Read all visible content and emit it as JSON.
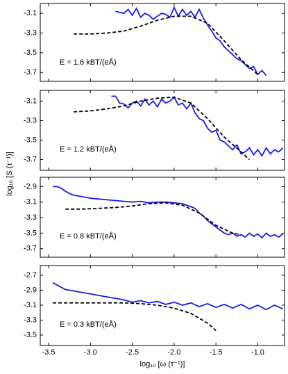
{
  "chart_data": [
    {
      "type": "line",
      "annotation": "E = 1.6 kBT/(eÅ)",
      "xlim": [
        -3.6,
        -0.68
      ],
      "xticks": [
        -3.5,
        {
          "value": -3,
          "label": "-3.0"
        },
        -2.5,
        {
          "value": -2,
          "label": "-2.0"
        },
        -1.5,
        {
          "value": -1,
          "label": "-1.0"
        }
      ],
      "ylim": [
        -3.79,
        -3.0
      ],
      "yticks": [
        -3.1,
        -3.3,
        -3.5,
        -3.7
      ],
      "series": [
        {
          "color": "#1a1aeb",
          "dash": false,
          "x": [
            -2.7,
            -2.65,
            -2.6,
            -2.55,
            -2.5,
            -2.45,
            -2.4,
            -2.35,
            -2.3,
            -2.25,
            -2.2,
            -2.15,
            -2.1,
            -2.05,
            -2.0,
            -1.95,
            -1.9,
            -1.85,
            -1.8,
            -1.75,
            -1.7,
            -1.65,
            -1.6,
            -1.55,
            -1.5,
            -1.45,
            -1.4,
            -1.35,
            -1.3,
            -1.25,
            -1.2,
            -1.15,
            -1.1,
            -1.05,
            -1.0,
            -0.95,
            -0.9
          ],
          "values": [
            -3.08,
            -3.09,
            -3.1,
            -3.06,
            -3.12,
            -3.05,
            -3.14,
            -3.1,
            -3.12,
            -3.16,
            -3.13,
            -3.1,
            -3.11,
            -3.14,
            -3.04,
            -3.13,
            -3.06,
            -3.12,
            -3.08,
            -3.14,
            -3.06,
            -3.15,
            -3.22,
            -3.28,
            -3.35,
            -3.38,
            -3.44,
            -3.48,
            -3.52,
            -3.56,
            -3.58,
            -3.62,
            -3.66,
            -3.64,
            -3.72,
            -3.68,
            -3.73
          ]
        },
        {
          "color": "#000000",
          "dash": true,
          "x": [
            -3.2,
            -3.0,
            -2.8,
            -2.6,
            -2.4,
            -2.2,
            -2.0,
            -1.8,
            -1.6,
            -1.4,
            -1.2,
            -1.0
          ],
          "values": [
            -3.31,
            -3.31,
            -3.3,
            -3.28,
            -3.23,
            -3.17,
            -3.13,
            -3.13,
            -3.2,
            -3.38,
            -3.57,
            -3.72
          ]
        }
      ]
    },
    {
      "type": "line",
      "annotation": "E = 1.2 kBT/(eÅ)",
      "ylabel": "log₁₀ [S (τ⁻¹)]",
      "xlim": [
        -3.6,
        -0.68
      ],
      "xticks": [
        -3.5,
        {
          "value": -3,
          "label": "-3.0"
        },
        -2.5,
        {
          "value": -2,
          "label": "-2.0"
        },
        -1.5,
        {
          "value": -1,
          "label": "-1.0"
        }
      ],
      "ylim": [
        -3.81,
        -2.99
      ],
      "yticks": [
        -3.1,
        -3.3,
        -3.5,
        -3.7
      ],
      "series": [
        {
          "color": "#1a1aeb",
          "dash": false,
          "x": [
            -2.75,
            -2.7,
            -2.65,
            -2.6,
            -2.55,
            -2.5,
            -2.45,
            -2.4,
            -2.35,
            -2.3,
            -2.25,
            -2.2,
            -2.15,
            -2.1,
            -2.05,
            -2.0,
            -1.95,
            -1.9,
            -1.85,
            -1.8,
            -1.75,
            -1.7,
            -1.65,
            -1.6,
            -1.55,
            -1.5,
            -1.45,
            -1.4,
            -1.35,
            -1.3,
            -1.25,
            -1.2,
            -1.15,
            -1.1,
            -1.05,
            -1.0,
            -0.95,
            -0.9,
            -0.85,
            -0.8,
            -0.75,
            -0.7
          ],
          "values": [
            -3.05,
            -3.05,
            -3.12,
            -3.13,
            -3.17,
            -3.12,
            -3.1,
            -3.15,
            -3.08,
            -3.14,
            -3.1,
            -3.16,
            -3.08,
            -3.12,
            -3.1,
            -3.06,
            -3.14,
            -3.12,
            -3.18,
            -3.12,
            -3.22,
            -3.28,
            -3.3,
            -3.38,
            -3.42,
            -3.4,
            -3.5,
            -3.52,
            -3.56,
            -3.6,
            -3.55,
            -3.64,
            -3.62,
            -3.58,
            -3.65,
            -3.6,
            -3.66,
            -3.58,
            -3.64,
            -3.6,
            -3.62,
            -3.58
          ]
        },
        {
          "color": "#000000",
          "dash": true,
          "x": [
            -3.2,
            -3.0,
            -2.8,
            -2.6,
            -2.4,
            -2.2,
            -2.0,
            -1.8,
            -1.6,
            -1.4,
            -1.2,
            -1.1
          ],
          "values": [
            -3.21,
            -3.2,
            -3.18,
            -3.15,
            -3.1,
            -3.07,
            -3.06,
            -3.12,
            -3.28,
            -3.47,
            -3.62,
            -3.7
          ]
        }
      ]
    },
    {
      "type": "line",
      "annotation": "E = 0.8 kBT/(eÅ)",
      "xlim": [
        -3.6,
        -0.68
      ],
      "xticks": [
        -3.5,
        {
          "value": -3,
          "label": "-3.0"
        },
        -2.5,
        {
          "value": -2,
          "label": "-2.0"
        },
        -1.5,
        {
          "value": -1,
          "label": "-1.0"
        }
      ],
      "ylim": [
        -3.81,
        -2.78
      ],
      "yticks": [
        -2.9,
        -3.1,
        -3.3,
        -3.5,
        -3.7
      ],
      "series": [
        {
          "color": "#1a1aeb",
          "dash": false,
          "x": [
            -3.45,
            -3.4,
            -3.35,
            -3.3,
            -3.25,
            -3.2,
            -3.15,
            -3.1,
            -3.05,
            -3.0,
            -2.9,
            -2.8,
            -2.7,
            -2.6,
            -2.5,
            -2.4,
            -2.3,
            -2.2,
            -2.1,
            -2.0,
            -1.9,
            -1.8,
            -1.75,
            -1.7,
            -1.65,
            -1.6,
            -1.55,
            -1.5,
            -1.45,
            -1.4,
            -1.35,
            -1.3,
            -1.25,
            -1.2,
            -1.15,
            -1.1,
            -1.05,
            -1.0,
            -0.95,
            -0.9,
            -0.85,
            -0.8,
            -0.75,
            -0.7
          ],
          "values": [
            -2.9,
            -2.9,
            -2.92,
            -2.96,
            -2.99,
            -3.01,
            -3.02,
            -3.03,
            -3.04,
            -3.05,
            -3.06,
            -3.07,
            -3.08,
            -3.09,
            -3.1,
            -3.09,
            -3.11,
            -3.1,
            -3.1,
            -3.11,
            -3.12,
            -3.16,
            -3.18,
            -3.24,
            -3.28,
            -3.34,
            -3.38,
            -3.42,
            -3.46,
            -3.5,
            -3.52,
            -3.5,
            -3.54,
            -3.52,
            -3.55,
            -3.5,
            -3.54,
            -3.51,
            -3.56,
            -3.5,
            -3.54,
            -3.52,
            -3.55,
            -3.51
          ]
        },
        {
          "color": "#000000",
          "dash": true,
          "x": [
            -3.3,
            -3.1,
            -2.9,
            -2.7,
            -2.5,
            -2.3,
            -2.1,
            -1.9,
            -1.7,
            -1.5,
            -1.3,
            -1.2
          ],
          "values": [
            -3.19,
            -3.19,
            -3.18,
            -3.17,
            -3.15,
            -3.12,
            -3.11,
            -3.14,
            -3.24,
            -3.4,
            -3.5,
            -3.52
          ]
        }
      ]
    },
    {
      "type": "line",
      "annotation": "E = 0.3  kBT/(eÅ)",
      "xlabel": "log₁₀ [ω (τ⁻¹)]",
      "xlim": [
        -3.6,
        -0.68
      ],
      "xticks": [
        -3.5,
        {
          "value": -3,
          "label": "-3.0"
        },
        -2.5,
        {
          "value": -2,
          "label": "-2.0"
        },
        -1.5,
        {
          "value": -1,
          "label": "-1.0"
        }
      ],
      "ylim": [
        -3.64,
        -2.57
      ],
      "yticks": [
        -2.7,
        -2.9,
        -3.1,
        -3.3,
        -3.5
      ],
      "series": [
        {
          "color": "#1a1aeb",
          "dash": false,
          "x": [
            -3.45,
            -3.4,
            -3.35,
            -3.3,
            -3.25,
            -3.2,
            -3.1,
            -3.0,
            -2.9,
            -2.8,
            -2.7,
            -2.6,
            -2.5,
            -2.4,
            -2.3,
            -2.2,
            -2.1,
            -2.0,
            -1.9,
            -1.8,
            -1.7,
            -1.6,
            -1.5,
            -1.4,
            -1.3,
            -1.2,
            -1.1,
            -1.0,
            -0.9,
            -0.8,
            -0.7
          ],
          "values": [
            -2.8,
            -2.83,
            -2.86,
            -2.89,
            -2.9,
            -2.91,
            -2.93,
            -2.95,
            -2.97,
            -2.99,
            -3.01,
            -3.03,
            -3.06,
            -3.04,
            -3.07,
            -3.05,
            -3.09,
            -3.06,
            -3.1,
            -3.07,
            -3.12,
            -3.08,
            -3.13,
            -3.09,
            -3.14,
            -3.09,
            -3.15,
            -3.1,
            -3.16,
            -3.1,
            -3.15
          ]
        },
        {
          "color": "#000000",
          "dash": true,
          "x": [
            -3.45,
            -3.2,
            -3.0,
            -2.8,
            -2.6,
            -2.4,
            -2.2,
            -2.0,
            -1.8,
            -1.6,
            -1.5
          ],
          "values": [
            -3.07,
            -3.07,
            -3.07,
            -3.07,
            -3.07,
            -3.08,
            -3.1,
            -3.14,
            -3.21,
            -3.34,
            -3.44
          ]
        }
      ]
    }
  ]
}
